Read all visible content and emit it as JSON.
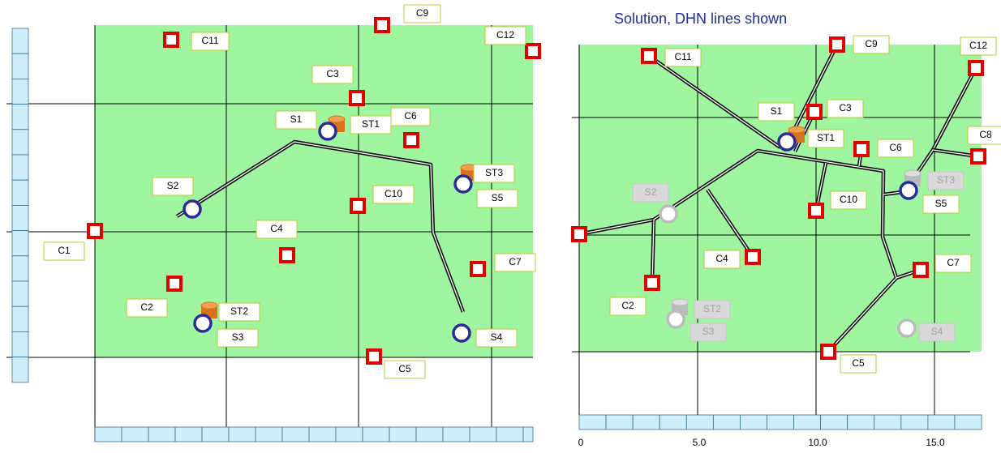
{
  "left": {
    "labels": [
      "C11",
      "C9",
      "C12",
      "C3",
      "C6",
      "S1",
      "ST1",
      "S2",
      "ST3",
      "S5",
      "C10",
      "C1",
      "C4",
      "C7",
      "C2",
      "ST2",
      "S3",
      "S4",
      "C5"
    ]
  },
  "right": {
    "title": "Solution, DHN lines shown",
    "labels": [
      "C11",
      "C9",
      "C12",
      "S1",
      "C3",
      "ST1",
      "C6",
      "C8",
      "ST3",
      "S5",
      "S2",
      "C10",
      "C4",
      "C7",
      "C2",
      "ST2",
      "S3",
      "S4",
      "C5"
    ],
    "x_tick_labels": [
      "0",
      "5.0",
      "10.0",
      "15.0"
    ]
  }
}
